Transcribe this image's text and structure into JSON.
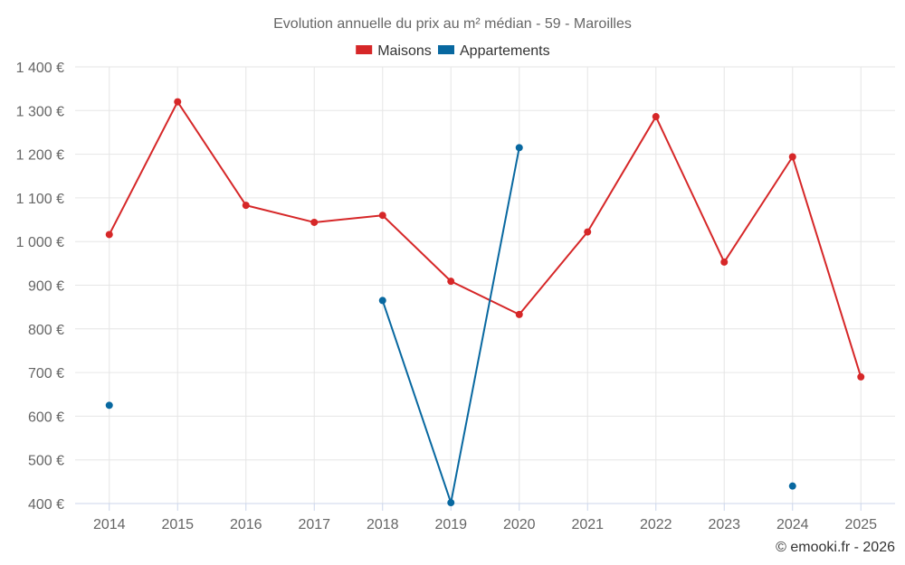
{
  "chart_data": {
    "type": "line",
    "title": "Evolution annuelle du prix au m² médian - 59 - Maroilles",
    "categories": [
      "2014",
      "2015",
      "2016",
      "2017",
      "2018",
      "2019",
      "2020",
      "2021",
      "2022",
      "2023",
      "2024",
      "2025"
    ],
    "ylim": [
      400,
      1400
    ],
    "yticks": [
      400,
      500,
      600,
      700,
      800,
      900,
      1000,
      1100,
      1200,
      1300,
      1400
    ],
    "ytick_labels": [
      "400 €",
      "500 €",
      "600 €",
      "700 €",
      "800 €",
      "900 €",
      "1 000 €",
      "1 100 €",
      "1 200 €",
      "1 300 €",
      "1 400 €"
    ],
    "series": [
      {
        "name": "Maisons",
        "color": "#d62728",
        "values": [
          1016,
          1320,
          1083,
          1044,
          1060,
          909,
          833,
          1022,
          1286,
          953,
          1194,
          690
        ]
      },
      {
        "name": "Appartements",
        "color": "#0868a0",
        "values": [
          625,
          null,
          null,
          null,
          865,
          402,
          1215,
          null,
          null,
          null,
          440,
          null
        ]
      }
    ],
    "grid": true,
    "legend_position": "top-center",
    "credit": "© emooki.fr - 2026"
  }
}
